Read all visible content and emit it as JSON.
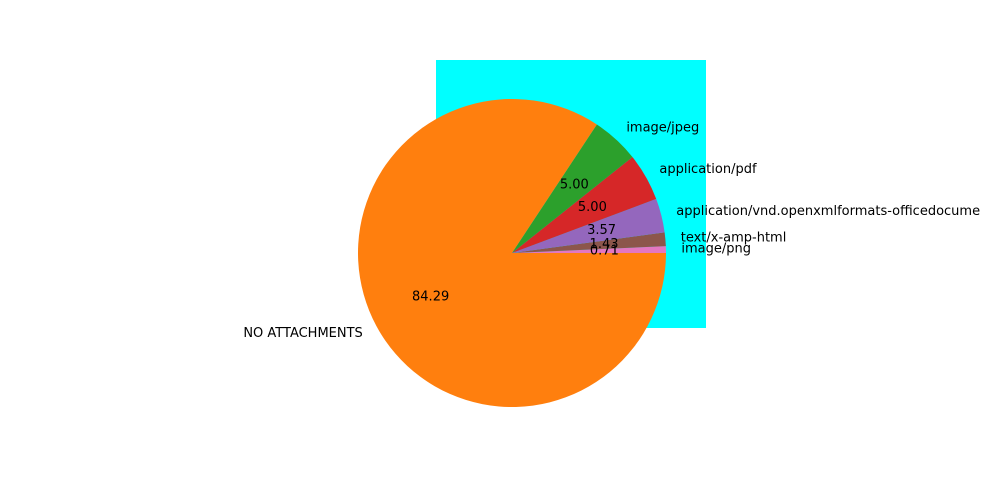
{
  "chart_data": {
    "type": "pie",
    "title": "",
    "start_angle_deg": 0,
    "direction": "counterclockwise",
    "slices": [
      {
        "label": "image/png",
        "value": 0.71,
        "value_label": "0.71",
        "color": "#e377c2"
      },
      {
        "label": "text/x-amp-html",
        "value": 1.43,
        "value_label": "1.43",
        "color": "#8c564b"
      },
      {
        "label": "application/vnd.openxmlformats-officedocume",
        "value": 3.57,
        "value_label": "3.57",
        "color": "#9467bd"
      },
      {
        "label": "application/pdf",
        "value": 5.0,
        "value_label": "5.00",
        "color": "#d62728"
      },
      {
        "label": "image/jpeg",
        "value": 5.0,
        "value_label": "5.00",
        "color": "#2ca02c"
      },
      {
        "label": "NO ATTACHMENTS",
        "value": 84.29,
        "value_label": "84.29",
        "color": "#ff7f0e"
      }
    ],
    "background_box_color": "#00ffff"
  }
}
